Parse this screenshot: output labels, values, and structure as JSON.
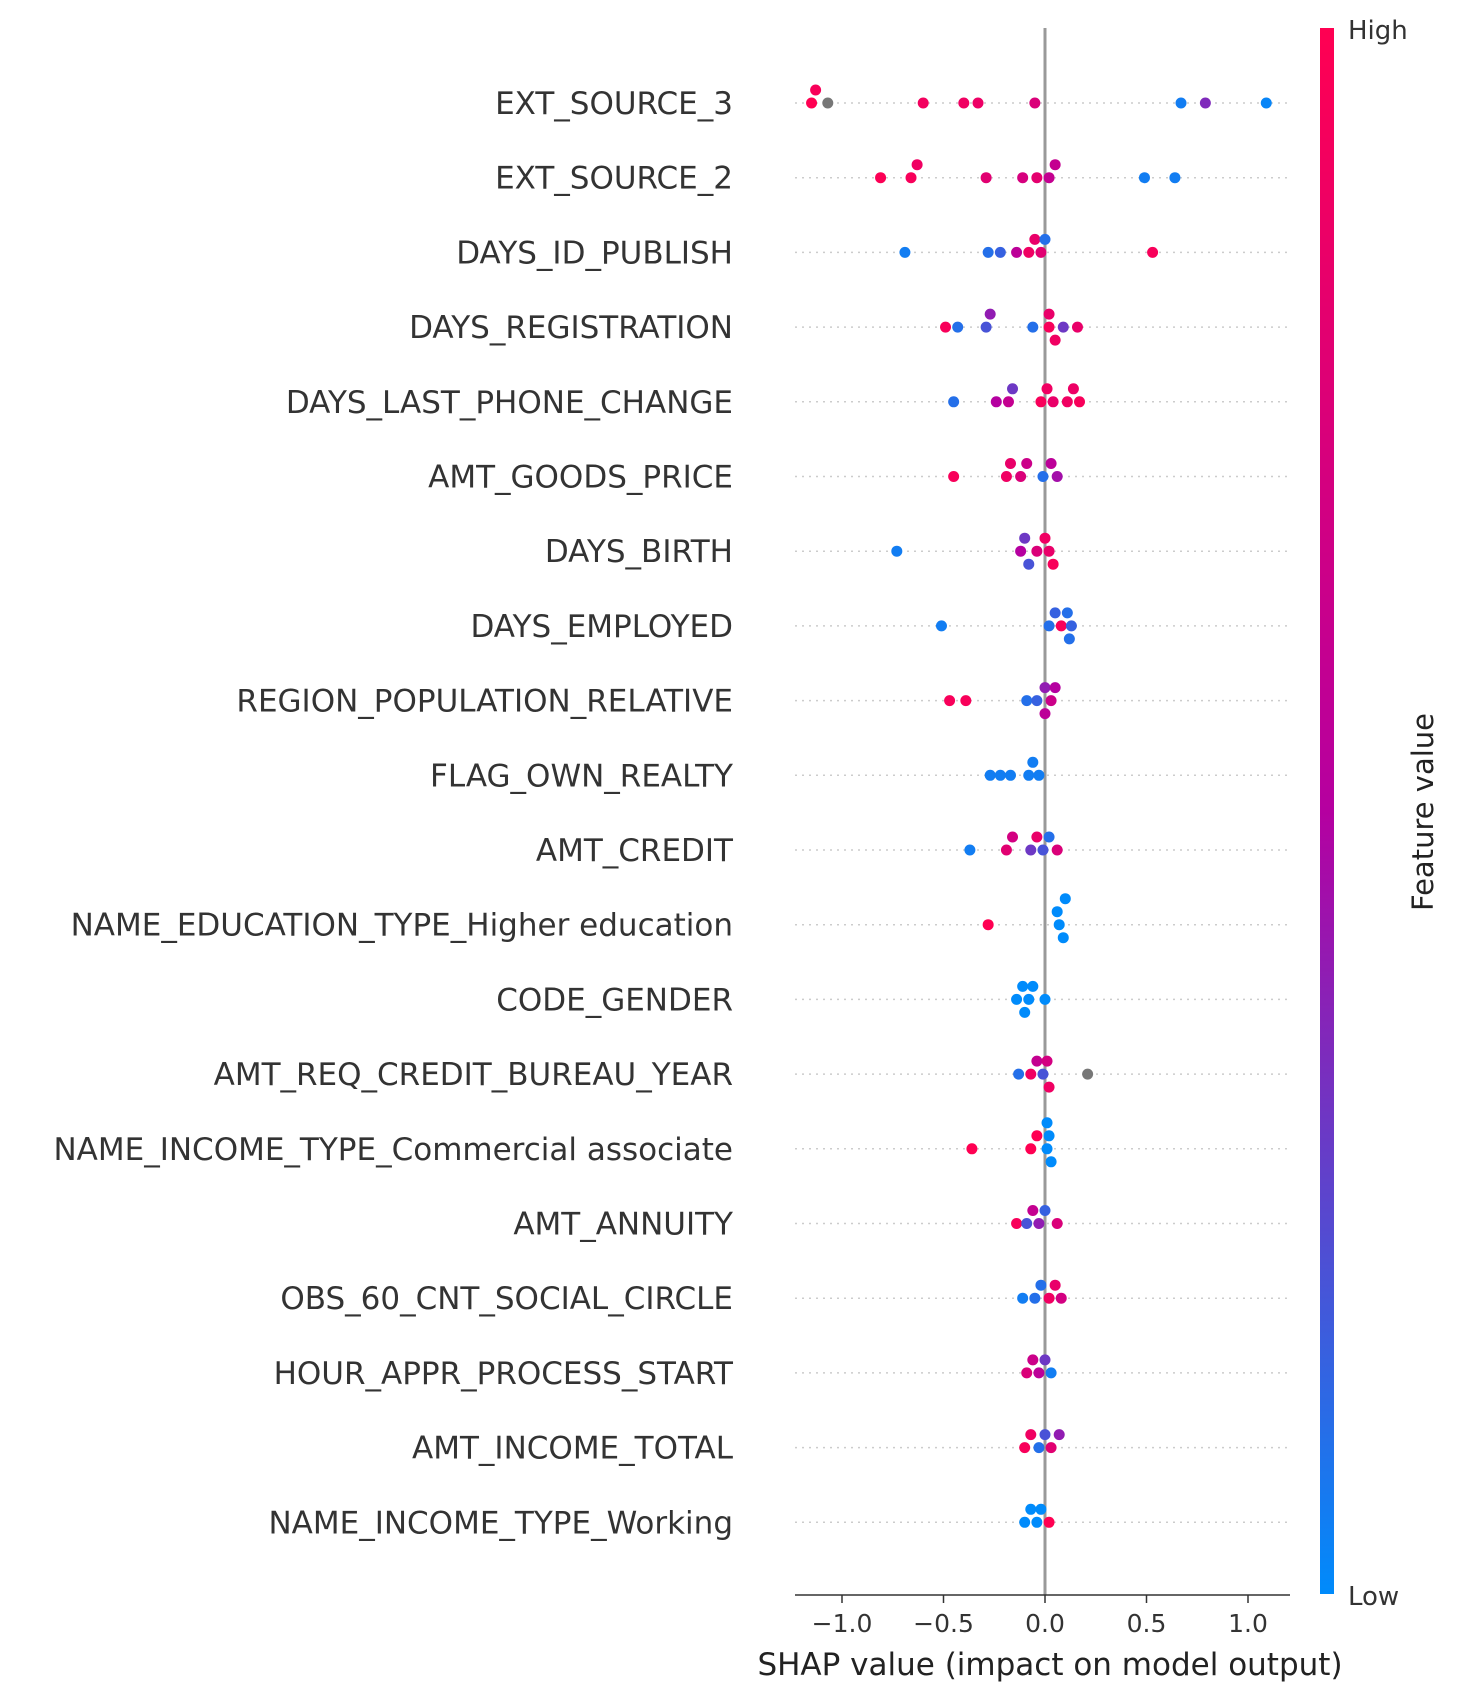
{
  "chart_data": {
    "type": "scatter",
    "subtype": "shap_beeswarm",
    "title": "",
    "xlabel": "SHAP value (impact on model output)",
    "ylabel": "",
    "xlim": [
      -1.25,
      1.2
    ],
    "x_ticks": [
      -1.0,
      -0.5,
      0.0,
      0.5,
      1.0
    ],
    "x_tick_labels": [
      "−1.0",
      "−0.5",
      "0.0",
      "0.5",
      "1.0"
    ],
    "grid": "horizontal dotted row lines",
    "colorbar": {
      "title": "Feature value",
      "high_label": "High",
      "low_label": "Low",
      "colors": [
        "#008bfb",
        "#ff0052"
      ]
    },
    "missing_color": "#777777",
    "features": [
      {
        "name": "EXT_SOURCE_3",
        "points": [
          {
            "x": -1.15,
            "v": 1.0
          },
          {
            "x": -1.13,
            "v": 0.95
          },
          {
            "x": -1.07,
            "v": null
          },
          {
            "x": -0.6,
            "v": 0.92
          },
          {
            "x": -0.4,
            "v": 0.9
          },
          {
            "x": -0.33,
            "v": 0.88
          },
          {
            "x": -0.05,
            "v": 0.75
          },
          {
            "x": 0.67,
            "v": 0.05
          },
          {
            "x": 0.79,
            "v": 0.35
          },
          {
            "x": 1.09,
            "v": 0.02
          }
        ]
      },
      {
        "name": "EXT_SOURCE_2",
        "points": [
          {
            "x": -0.81,
            "v": 0.98
          },
          {
            "x": -0.66,
            "v": 0.95
          },
          {
            "x": -0.63,
            "v": 0.9
          },
          {
            "x": -0.29,
            "v": 0.8
          },
          {
            "x": -0.11,
            "v": 0.72
          },
          {
            "x": -0.04,
            "v": 0.82
          },
          {
            "x": 0.02,
            "v": 0.6
          },
          {
            "x": 0.05,
            "v": 0.6
          },
          {
            "x": 0.49,
            "v": 0.05
          },
          {
            "x": 0.64,
            "v": 0.05
          }
        ]
      },
      {
        "name": "DAYS_ID_PUBLISH",
        "points": [
          {
            "x": -0.69,
            "v": 0.05
          },
          {
            "x": -0.28,
            "v": 0.1
          },
          {
            "x": -0.22,
            "v": 0.15
          },
          {
            "x": -0.14,
            "v": 0.55
          },
          {
            "x": -0.08,
            "v": 0.9
          },
          {
            "x": -0.05,
            "v": 0.85
          },
          {
            "x": -0.02,
            "v": 0.8
          },
          {
            "x": 0.0,
            "v": 0.1
          },
          {
            "x": 0.53,
            "v": 0.95
          }
        ]
      },
      {
        "name": "DAYS_REGISTRATION",
        "points": [
          {
            "x": -0.49,
            "v": 0.95
          },
          {
            "x": -0.43,
            "v": 0.1
          },
          {
            "x": -0.29,
            "v": 0.2
          },
          {
            "x": -0.27,
            "v": 0.4
          },
          {
            "x": -0.06,
            "v": 0.1
          },
          {
            "x": 0.02,
            "v": 0.95
          },
          {
            "x": 0.02,
            "v": 0.85
          },
          {
            "x": 0.05,
            "v": 0.9
          },
          {
            "x": 0.09,
            "v": 0.3
          },
          {
            "x": 0.16,
            "v": 0.85
          }
        ]
      },
      {
        "name": "DAYS_LAST_PHONE_CHANGE",
        "points": [
          {
            "x": -0.45,
            "v": 0.1
          },
          {
            "x": -0.24,
            "v": 0.5
          },
          {
            "x": -0.18,
            "v": 0.6
          },
          {
            "x": -0.16,
            "v": 0.3
          },
          {
            "x": -0.02,
            "v": 0.95
          },
          {
            "x": 0.01,
            "v": 0.9
          },
          {
            "x": 0.04,
            "v": 0.85
          },
          {
            "x": 0.11,
            "v": 0.9
          },
          {
            "x": 0.14,
            "v": 0.88
          },
          {
            "x": 0.17,
            "v": 0.95
          }
        ]
      },
      {
        "name": "AMT_GOODS_PRICE",
        "points": [
          {
            "x": -0.45,
            "v": 0.95
          },
          {
            "x": -0.19,
            "v": 0.9
          },
          {
            "x": -0.17,
            "v": 0.85
          },
          {
            "x": -0.12,
            "v": 0.75
          },
          {
            "x": -0.09,
            "v": 0.65
          },
          {
            "x": -0.01,
            "v": 0.1
          },
          {
            "x": 0.03,
            "v": 0.55
          },
          {
            "x": 0.06,
            "v": 0.45
          }
        ]
      },
      {
        "name": "DAYS_BIRTH",
        "points": [
          {
            "x": -0.73,
            "v": 0.05
          },
          {
            "x": -0.12,
            "v": 0.5
          },
          {
            "x": -0.1,
            "v": 0.3
          },
          {
            "x": -0.08,
            "v": 0.2
          },
          {
            "x": -0.04,
            "v": 0.75
          },
          {
            "x": 0.0,
            "v": 0.9
          },
          {
            "x": 0.02,
            "v": 0.85
          },
          {
            "x": 0.04,
            "v": 0.95
          }
        ]
      },
      {
        "name": "DAYS_EMPLOYED",
        "points": [
          {
            "x": -0.51,
            "v": 0.05
          },
          {
            "x": 0.02,
            "v": 0.1
          },
          {
            "x": 0.05,
            "v": 0.15
          },
          {
            "x": 0.08,
            "v": 0.95
          },
          {
            "x": 0.11,
            "v": 0.1
          },
          {
            "x": 0.12,
            "v": 0.1
          },
          {
            "x": 0.13,
            "v": 0.15
          }
        ]
      },
      {
        "name": "REGION_POPULATION_RELATIVE",
        "points": [
          {
            "x": -0.47,
            "v": 0.95
          },
          {
            "x": -0.39,
            "v": 0.95
          },
          {
            "x": -0.09,
            "v": 0.1
          },
          {
            "x": -0.04,
            "v": 0.15
          },
          {
            "x": 0.0,
            "v": 0.4
          },
          {
            "x": 0.0,
            "v": 0.55
          },
          {
            "x": 0.03,
            "v": 0.65
          },
          {
            "x": 0.05,
            "v": 0.5
          }
        ]
      },
      {
        "name": "FLAG_OWN_REALTY",
        "points": [
          {
            "x": -0.27,
            "v": 0.05
          },
          {
            "x": -0.22,
            "v": 0.05
          },
          {
            "x": -0.17,
            "v": 0.05
          },
          {
            "x": -0.08,
            "v": 0.05
          },
          {
            "x": -0.06,
            "v": 0.05
          },
          {
            "x": -0.03,
            "v": 0.05
          }
        ]
      },
      {
        "name": "AMT_CREDIT",
        "points": [
          {
            "x": -0.37,
            "v": 0.05
          },
          {
            "x": -0.19,
            "v": 0.8
          },
          {
            "x": -0.16,
            "v": 0.7
          },
          {
            "x": -0.07,
            "v": 0.3
          },
          {
            "x": -0.04,
            "v": 0.85
          },
          {
            "x": -0.01,
            "v": 0.2
          },
          {
            "x": 0.02,
            "v": 0.1
          },
          {
            "x": 0.06,
            "v": 0.75
          }
        ]
      },
      {
        "name": "NAME_EDUCATION_TYPE_Higher education",
        "points": [
          {
            "x": -0.28,
            "v": 1.0
          },
          {
            "x": 0.07,
            "v": 0.0
          },
          {
            "x": 0.06,
            "v": 0.0
          },
          {
            "x": 0.09,
            "v": 0.0
          },
          {
            "x": 0.1,
            "v": 0.0
          }
        ]
      },
      {
        "name": "CODE_GENDER",
        "points": [
          {
            "x": -0.14,
            "v": 0.0
          },
          {
            "x": -0.11,
            "v": 0.0
          },
          {
            "x": -0.1,
            "v": 0.0
          },
          {
            "x": -0.08,
            "v": 0.0
          },
          {
            "x": -0.06,
            "v": 0.0
          },
          {
            "x": 0.0,
            "v": 0.0
          }
        ]
      },
      {
        "name": "AMT_REQ_CREDIT_BUREAU_YEAR",
        "points": [
          {
            "x": -0.13,
            "v": 0.1
          },
          {
            "x": -0.07,
            "v": 0.9
          },
          {
            "x": -0.04,
            "v": 0.6
          },
          {
            "x": -0.01,
            "v": 0.2
          },
          {
            "x": 0.01,
            "v": 0.7
          },
          {
            "x": 0.02,
            "v": 0.9
          },
          {
            "x": 0.21,
            "v": null
          }
        ]
      },
      {
        "name": "NAME_INCOME_TYPE_Commercial associate",
        "points": [
          {
            "x": -0.36,
            "v": 1.0
          },
          {
            "x": -0.07,
            "v": 1.0
          },
          {
            "x": -0.04,
            "v": 1.0
          },
          {
            "x": 0.01,
            "v": 0.0
          },
          {
            "x": 0.02,
            "v": 0.0
          },
          {
            "x": 0.03,
            "v": 0.0
          },
          {
            "x": 0.01,
            "v": 0.0
          }
        ]
      },
      {
        "name": "AMT_ANNUITY",
        "points": [
          {
            "x": -0.14,
            "v": 0.95
          },
          {
            "x": -0.09,
            "v": 0.2
          },
          {
            "x": -0.06,
            "v": 0.6
          },
          {
            "x": -0.03,
            "v": 0.4
          },
          {
            "x": 0.0,
            "v": 0.15
          },
          {
            "x": 0.06,
            "v": 0.75
          }
        ]
      },
      {
        "name": "OBS_60_CNT_SOCIAL_CIRCLE",
        "points": [
          {
            "x": -0.11,
            "v": 0.05
          },
          {
            "x": -0.05,
            "v": 0.1
          },
          {
            "x": -0.02,
            "v": 0.1
          },
          {
            "x": 0.02,
            "v": 0.9
          },
          {
            "x": 0.05,
            "v": 0.85
          },
          {
            "x": 0.08,
            "v": 0.7
          }
        ]
      },
      {
        "name": "HOUR_APPR_PROCESS_START",
        "points": [
          {
            "x": -0.09,
            "v": 0.75
          },
          {
            "x": -0.06,
            "v": 0.65
          },
          {
            "x": -0.03,
            "v": 0.55
          },
          {
            "x": 0.0,
            "v": 0.3
          },
          {
            "x": 0.03,
            "v": 0.05
          }
        ]
      },
      {
        "name": "AMT_INCOME_TOTAL",
        "points": [
          {
            "x": -0.1,
            "v": 0.95
          },
          {
            "x": -0.07,
            "v": 0.9
          },
          {
            "x": -0.03,
            "v": 0.1
          },
          {
            "x": 0.0,
            "v": 0.2
          },
          {
            "x": 0.03,
            "v": 0.8
          },
          {
            "x": 0.07,
            "v": 0.4
          }
        ]
      },
      {
        "name": "NAME_INCOME_TYPE_Working",
        "points": [
          {
            "x": -0.1,
            "v": 0.0
          },
          {
            "x": -0.07,
            "v": 0.0
          },
          {
            "x": -0.04,
            "v": 0.0
          },
          {
            "x": -0.02,
            "v": 0.0
          },
          {
            "x": 0.02,
            "v": 1.0
          }
        ]
      }
    ]
  }
}
